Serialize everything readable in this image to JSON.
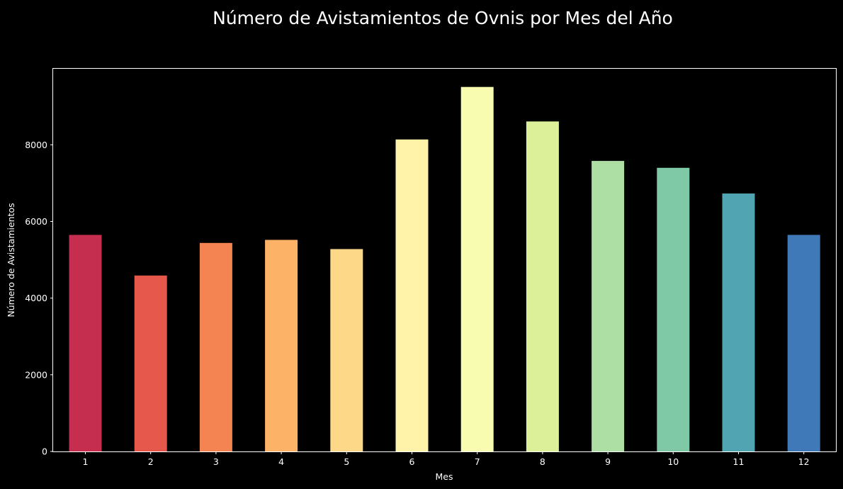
{
  "chart_data": {
    "type": "bar",
    "title": "Número de Avistamientos de Ovnis por Mes del Año",
    "xlabel": "Mes",
    "ylabel": "Número de Avistamientos",
    "categories": [
      "1",
      "2",
      "3",
      "4",
      "5",
      "6",
      "7",
      "8",
      "9",
      "10",
      "11",
      "12"
    ],
    "values": [
      5650,
      4590,
      5440,
      5520,
      5280,
      8140,
      9510,
      8610,
      7580,
      7400,
      6730,
      5650
    ],
    "ylim": [
      0,
      9985
    ],
    "yticks": [
      0,
      2000,
      4000,
      6000,
      8000
    ],
    "grid": false,
    "background": "#000000",
    "colors": [
      "#c52e4f",
      "#e5584b",
      "#f48452",
      "#fdb367",
      "#fed889",
      "#fff3aa",
      "#f7fcb1",
      "#dcf099",
      "#addea4",
      "#7fc9a7",
      "#51a5b2",
      "#3f79b7"
    ]
  }
}
